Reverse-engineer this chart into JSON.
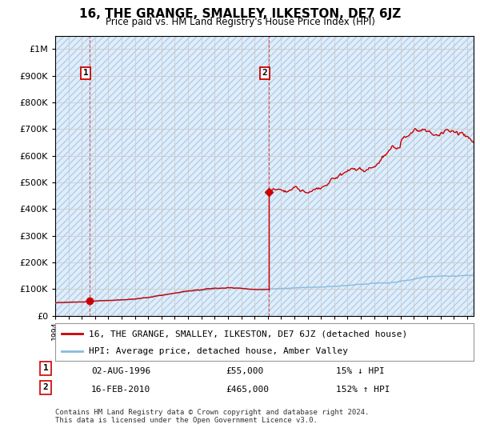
{
  "title": "16, THE GRANGE, SMALLEY, ILKESTON, DE7 6JZ",
  "subtitle": "Price paid vs. HM Land Registry's House Price Index (HPI)",
  "hpi_label": "HPI: Average price, detached house, Amber Valley",
  "property_label": "16, THE GRANGE, SMALLEY, ILKESTON, DE7 6JZ (detached house)",
  "transaction1_date": "02-AUG-1996",
  "transaction1_price": 55000,
  "transaction1_note": "15% ↓ HPI",
  "transaction2_date": "16-FEB-2010",
  "transaction2_price": 465000,
  "transaction2_note": "152% ↑ HPI",
  "footer": "Contains HM Land Registry data © Crown copyright and database right 2024.\nThis data is licensed under the Open Government Licence v3.0.",
  "ylim": [
    0,
    1050000
  ],
  "xlim_start": 1994.0,
  "xlim_end": 2025.5,
  "property_color": "#cc0000",
  "hpi_color": "#88bbdd",
  "grid_color": "#cccccc",
  "bg_color": "#ddeeff",
  "hatch_color": "#bbccdd"
}
